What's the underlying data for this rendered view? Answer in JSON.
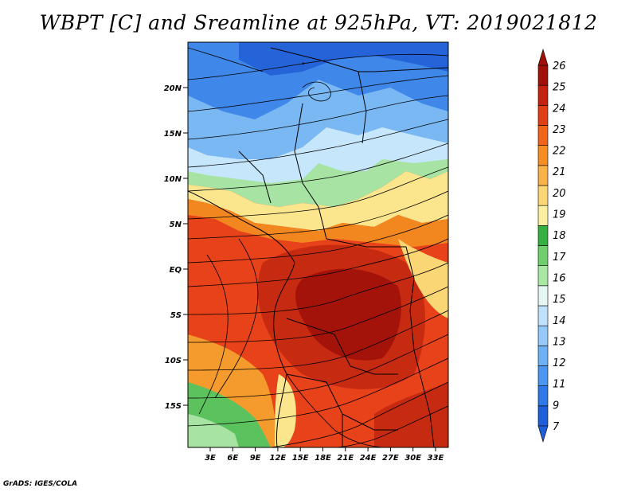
{
  "title": "WBPT [C] and Sreamline at 925hPa, VT: 2019021812",
  "credit": "GrADS: IGES/COLA",
  "map": {
    "lat_ticks": [
      "20N",
      "15N",
      "10N",
      "5N",
      "EQ",
      "5S",
      "10S",
      "15S"
    ],
    "lon_ticks": [
      "3E",
      "6E",
      "9E",
      "12E",
      "15E",
      "18E",
      "21E",
      "24E",
      "27E",
      "30E",
      "33E"
    ]
  },
  "colorbar": {
    "labels": [
      "7",
      "9",
      "11",
      "12",
      "13",
      "14",
      "15",
      "16",
      "17",
      "18",
      "19",
      "20",
      "21",
      "22",
      "23",
      "24",
      "25",
      "26"
    ],
    "colors": [
      "#1e5ed8",
      "#2f78e8",
      "#4b96f0",
      "#6fb1f6",
      "#94c9fa",
      "#c0e1fc",
      "#e6f6f2",
      "#a9e7a5",
      "#6fcf6c",
      "#37b042",
      "#fbf0a2",
      "#fbd675",
      "#f9b247",
      "#f68e23",
      "#f0651a",
      "#e13f16",
      "#c32210",
      "#a01008"
    ]
  }
}
